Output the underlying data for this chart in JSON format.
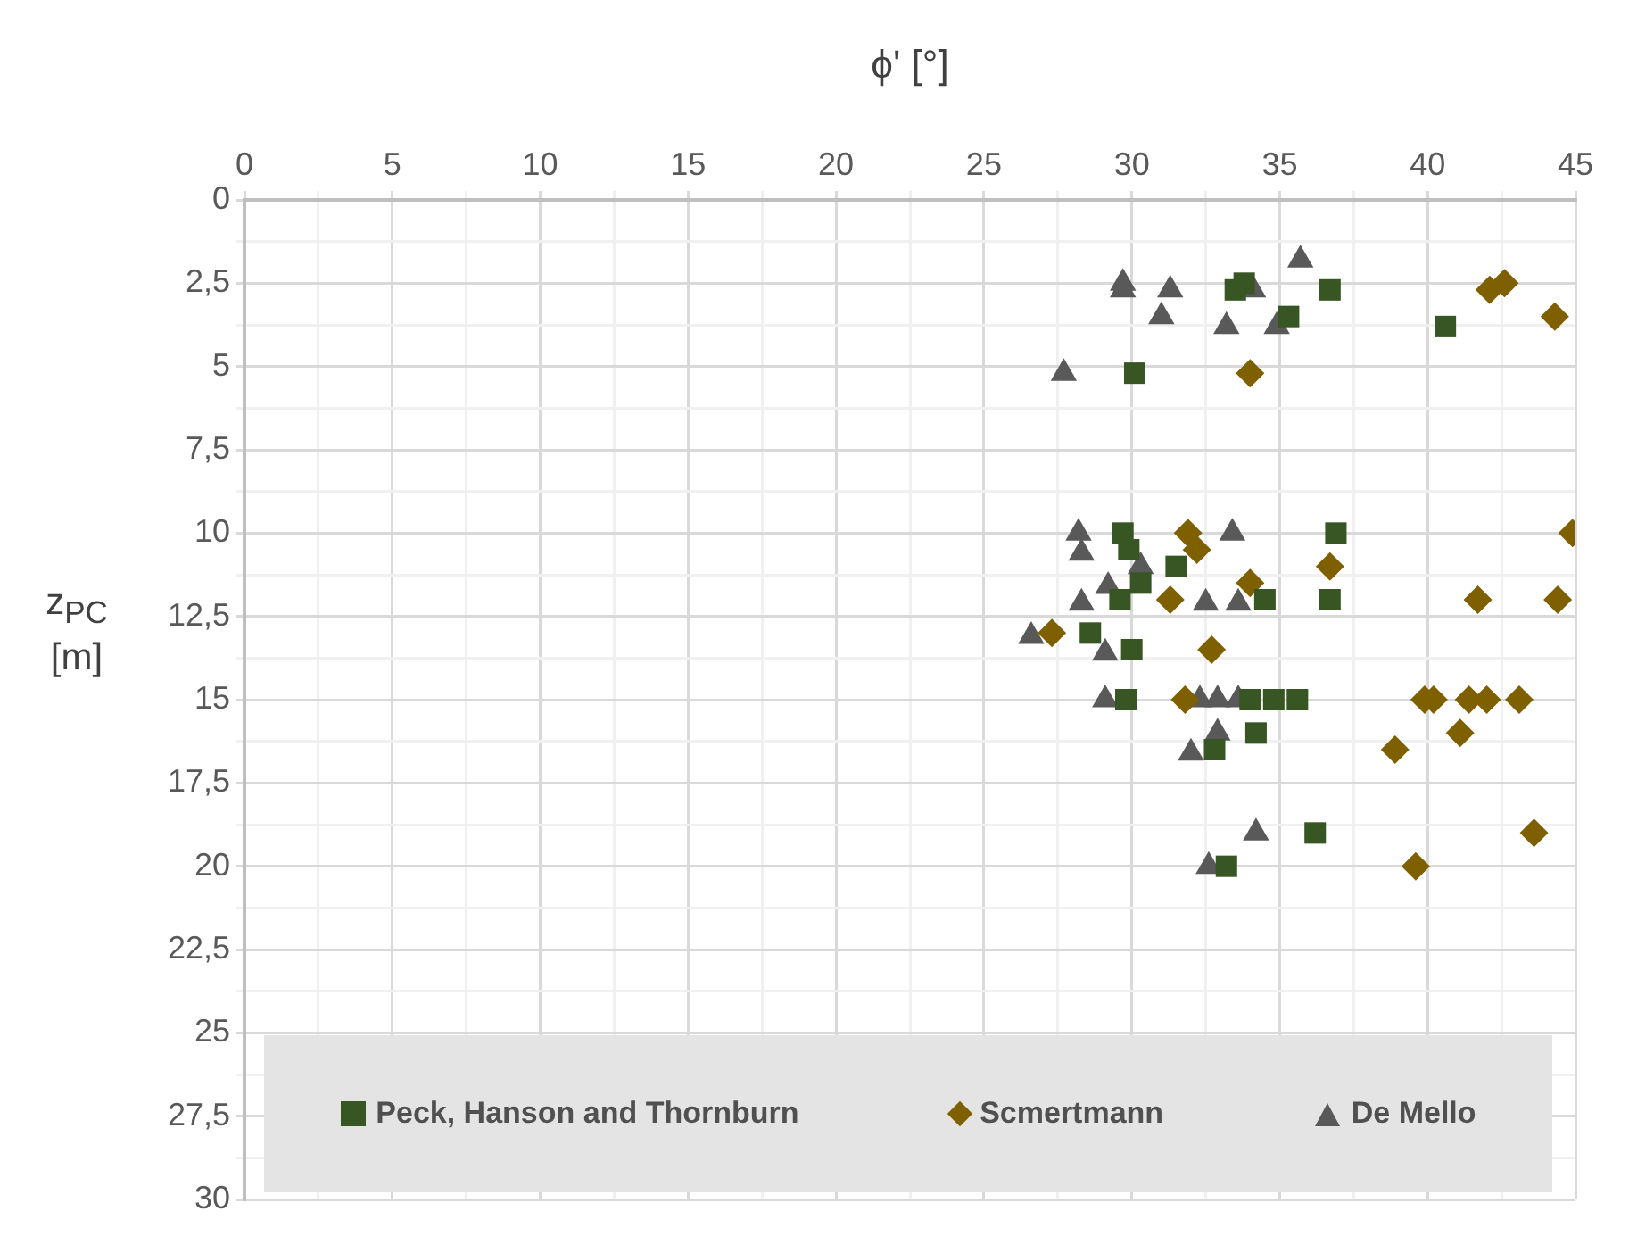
{
  "chart_data": {
    "type": "scatter",
    "xlabel": "ϕ' [°]",
    "ylabel": "z$_{PC}$ [m]",
    "xlim": [
      0,
      45
    ],
    "xticks": [
      0,
      {
        "value": 2.5,
        "label": null
      },
      5,
      {
        "value": 7.5,
        "label": null
      },
      10,
      {
        "value": 12.5,
        "label": null
      },
      15,
      {
        "value": 17.5,
        "label": null
      },
      20,
      {
        "value": 22.5,
        "label": null
      },
      25,
      {
        "value": 27.5,
        "label": null
      },
      30,
      {
        "value": 32.5,
        "label": null
      },
      35,
      {
        "value": 37.5,
        "label": null
      },
      40,
      {
        "value": 42.5,
        "label": null
      },
      45
    ],
    "ylim": [
      30,
      0
    ],
    "yticks": [
      0,
      {
        "value": 1.25,
        "label": null
      },
      {
        "value": 2.5,
        "label": "2,5"
      },
      {
        "value": 3.75,
        "label": null
      },
      5,
      {
        "value": 6.25,
        "label": null
      },
      {
        "value": 7.5,
        "label": "7,5"
      },
      {
        "value": 8.75,
        "label": null
      },
      10,
      {
        "value": 11.25,
        "label": null
      },
      {
        "value": 12.5,
        "label": "12,5"
      },
      {
        "value": 13.75,
        "label": null
      },
      15,
      {
        "value": 16.25,
        "label": null
      },
      {
        "value": 17.5,
        "label": "17,5"
      },
      {
        "value": 18.75,
        "label": null
      },
      20,
      {
        "value": 21.25,
        "label": null
      },
      {
        "value": 22.5,
        "label": "22,5"
      },
      {
        "value": 23.75,
        "label": null
      },
      25,
      {
        "value": 26.25,
        "label": null
      },
      {
        "value": 27.5,
        "label": "27,5"
      },
      {
        "value": 28.75,
        "label": null
      },
      30
    ],
    "grid": true,
    "legend": "bottom",
    "series": [
      {
        "name": "Peck, Hanson and Thornburn",
        "color": "#375623",
        "marker": "square",
        "x": [
          33.8,
          33.5,
          36.7,
          35.3,
          40.6,
          30.1,
          29.7,
          36.9,
          29.9,
          31.5,
          30.3,
          29.6,
          34.5,
          36.7,
          28.6,
          30.0,
          29.8,
          34.0,
          34.8,
          35.6,
          34.2,
          32.8,
          36.2,
          33.2
        ],
        "values": [
          2.5,
          2.7,
          2.7,
          3.5,
          3.8,
          5.2,
          10.0,
          10.0,
          10.5,
          11.0,
          11.5,
          12.0,
          12.0,
          12.0,
          13.0,
          13.5,
          15.0,
          15.0,
          15.0,
          15.0,
          16.0,
          16.5,
          19.0,
          20.0
        ]
      },
      {
        "name": "Scmertmann",
        "color": "#7f6000",
        "marker": "diamond",
        "x": [
          42.1,
          42.6,
          44.3,
          34.0,
          44.9,
          31.9,
          32.2,
          36.7,
          34.0,
          31.3,
          41.7,
          44.4,
          27.3,
          32.7,
          31.8,
          39.9,
          40.2,
          41.4,
          42.0,
          43.1,
          41.1,
          38.9,
          43.6,
          39.6
        ],
        "values": [
          2.7,
          2.5,
          3.5,
          5.2,
          10.0,
          10.0,
          10.5,
          11.0,
          11.5,
          12.0,
          12.0,
          12.0,
          13.0,
          13.5,
          15.0,
          15.0,
          15.0,
          15.0,
          15.0,
          15.0,
          16.0,
          16.5,
          19.0,
          20.0
        ]
      },
      {
        "name": "De Mello",
        "color": "#595959",
        "marker": "triangle",
        "x": [
          35.7,
          29.7,
          29.7,
          31.3,
          34.1,
          31.0,
          33.2,
          34.9,
          27.7,
          28.2,
          28.3,
          33.4,
          30.3,
          29.2,
          28.3,
          32.5,
          33.6,
          26.6,
          29.1,
          29.1,
          32.3,
          32.9,
          33.6,
          32.9,
          32.0,
          34.2,
          32.6
        ],
        "values": [
          1.8,
          2.5,
          2.7,
          2.7,
          2.7,
          3.5,
          3.8,
          3.8,
          5.2,
          10.0,
          10.6,
          10.0,
          11.0,
          11.6,
          12.1,
          12.1,
          12.1,
          13.1,
          13.6,
          15.0,
          15.0,
          15.0,
          15.0,
          16.0,
          16.6,
          19.0,
          20.0
        ]
      }
    ]
  }
}
